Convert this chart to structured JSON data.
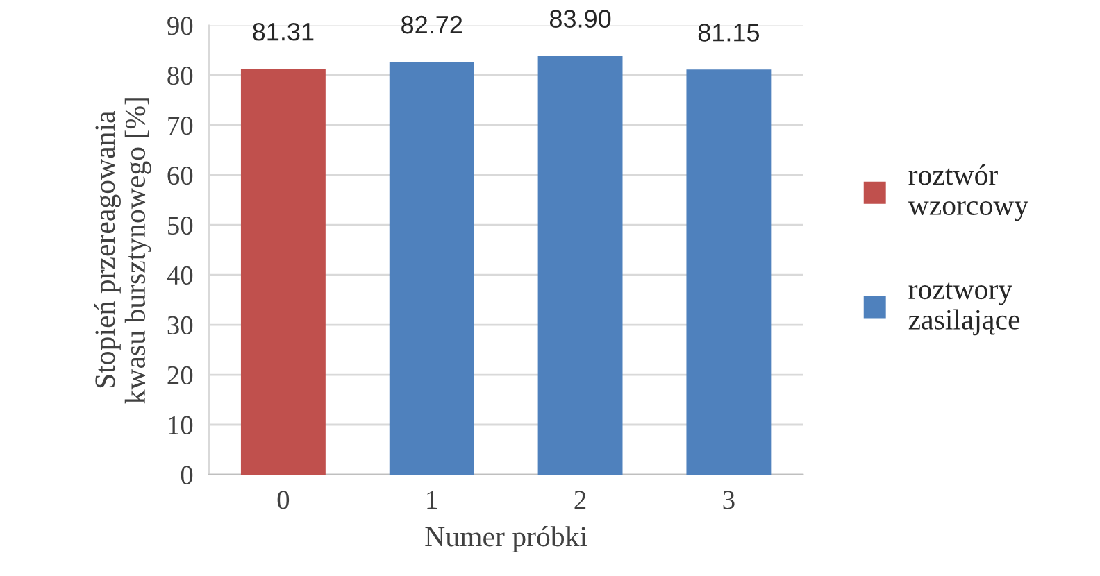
{
  "chart_data": {
    "type": "bar",
    "xlabel": "Numer próbki",
    "ylabel": "Stopień przereagowania kwasu bursztynowego [%]",
    "categories": [
      "0",
      "1",
      "2",
      "3"
    ],
    "series": [
      {
        "name": "roztwór wzorcowy",
        "color": "#c0504d",
        "values": [
          81.31,
          null,
          null,
          null
        ],
        "value_labels": [
          "81.31",
          null,
          null,
          null
        ]
      },
      {
        "name": "roztwory zasilające",
        "color": "#4f81bd",
        "values": [
          null,
          82.72,
          83.9,
          81.15
        ],
        "value_labels": [
          null,
          "82.72",
          "83.90",
          "81.15"
        ]
      }
    ],
    "ylim": [
      0,
      90
    ],
    "yticks": [
      0,
      10,
      20,
      30,
      40,
      50,
      60,
      70,
      80,
      90
    ],
    "grid": "y",
    "legend": "right"
  }
}
